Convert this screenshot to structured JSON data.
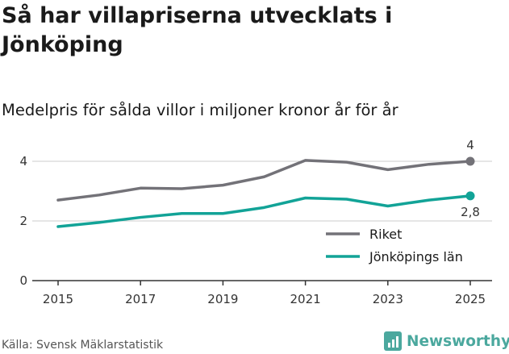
{
  "title": "Så har villapriserna utvecklats i Jönköping",
  "subtitle": "Medelpris för sålda villor i miljoner kronor år för år",
  "source": "Källa: Svensk Mäklarstatistik",
  "brand": "Newsworthy",
  "colors": {
    "riket": "#737278",
    "lan": "#12a397",
    "brand": "#4ba89e",
    "grid": "#cccccc",
    "axis": "#333333"
  },
  "chart_data": {
    "type": "line",
    "x": [
      2015,
      2016,
      2017,
      2018,
      2019,
      2020,
      2021,
      2022,
      2023,
      2024,
      2025
    ],
    "x_ticks": [
      "2015",
      "2017",
      "2019",
      "2021",
      "2023",
      "2025"
    ],
    "y_ticks": [
      "0",
      "2",
      "4"
    ],
    "ylim": [
      0,
      4.6
    ],
    "grid": true,
    "legend_position": "bottom-right",
    "series": [
      {
        "name": "Riket",
        "values": [
          2.7,
          2.87,
          3.1,
          3.08,
          3.2,
          3.48,
          4.03,
          3.97,
          3.72,
          3.9,
          4.0
        ],
        "end_label": "4"
      },
      {
        "name": "Jönköpings län",
        "values": [
          1.81,
          1.95,
          2.12,
          2.25,
          2.25,
          2.45,
          2.77,
          2.73,
          2.5,
          2.7,
          2.84
        ],
        "end_label": "2,8"
      }
    ]
  }
}
